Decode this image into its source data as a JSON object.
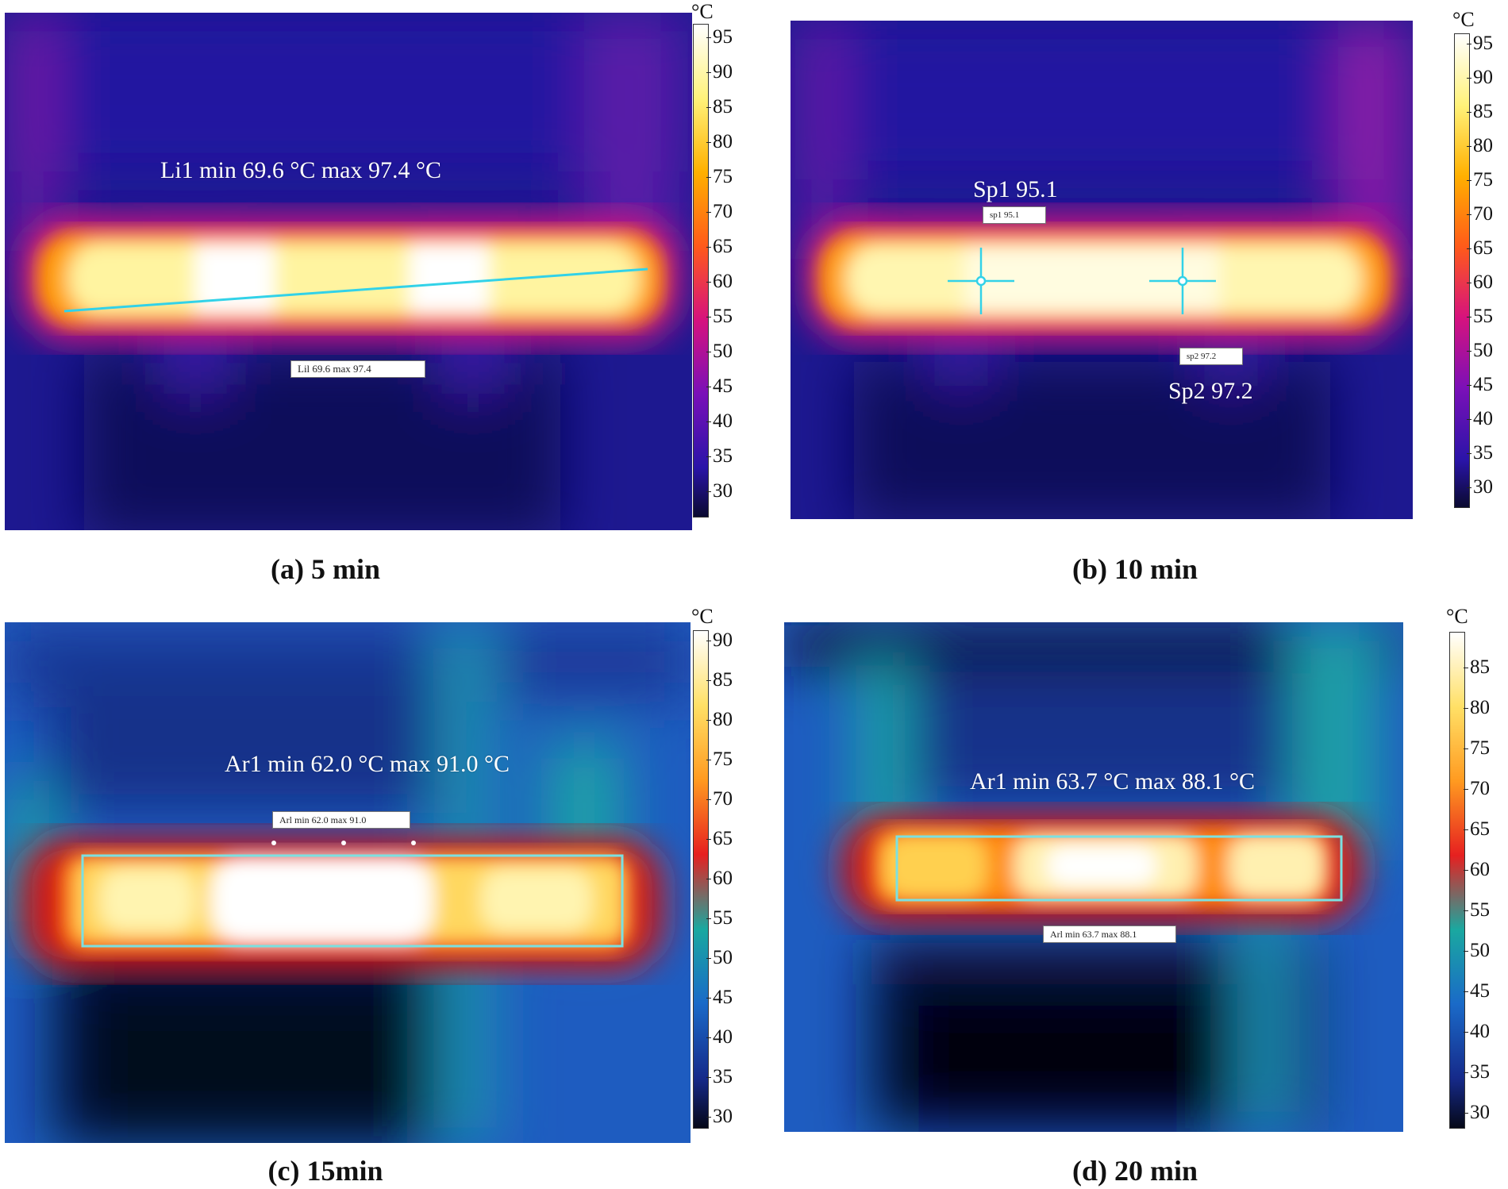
{
  "panels": [
    {
      "id": "a",
      "caption": "(a) 5 min",
      "overlay": "Li1  min  69.6 °C max 97.4 °C",
      "tags": [
        "Lil 69.6  max 97.4"
      ],
      "scale": {
        "unit": "°C",
        "ticks": [
          "95",
          "90",
          "85",
          "80",
          "75",
          "70",
          "65",
          "60",
          "55",
          "50",
          "45",
          "40",
          "35",
          "30"
        ]
      }
    },
    {
      "id": "b",
      "caption": "(b) 10 min",
      "overlay": "Sp1 95.1",
      "overlay2": "Sp2 97.2",
      "tags": [
        "sp1  95.1",
        "sp2   97.2"
      ],
      "scale": {
        "unit": "°C",
        "ticks": [
          "95",
          "90",
          "85",
          "80",
          "75",
          "70",
          "65",
          "60",
          "55",
          "50",
          "45",
          "40",
          "35",
          "30"
        ]
      }
    },
    {
      "id": "c",
      "caption": "(c) 15min",
      "overlay": "Ar1 min  62.0 °C max 91.0 °C",
      "tags": [
        "Arl min 62.0   max 91.0"
      ],
      "scale": {
        "unit": "°C",
        "ticks": [
          "90",
          "85",
          "80",
          "75",
          "70",
          "65",
          "60",
          "55",
          "50",
          "45",
          "40",
          "35",
          "30"
        ]
      }
    },
    {
      "id": "d",
      "caption": "(d) 20 min",
      "overlay": "Ar1 min  63.7 °C max 88.1 °C",
      "tags": [
        "Arl min 63.7  max 88.1"
      ],
      "scale": {
        "unit": "°C",
        "ticks": [
          "85",
          "80",
          "75",
          "70",
          "65",
          "60",
          "55",
          "50",
          "45",
          "40",
          "35",
          "30"
        ]
      }
    }
  ]
}
